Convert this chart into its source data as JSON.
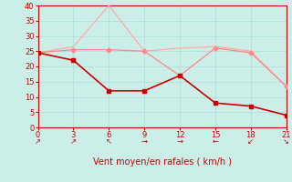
{
  "x_ticks": [
    0,
    3,
    6,
    9,
    12,
    15,
    18,
    21
  ],
  "xlabel": "Vent moyen/en rafales ( km/h )",
  "ylim": [
    0,
    40
  ],
  "xlim": [
    0,
    21
  ],
  "yticks": [
    0,
    5,
    10,
    15,
    20,
    25,
    30,
    35,
    40
  ],
  "background_color": "#cceee8",
  "grid_color": "#b0ddd8",
  "line1": {
    "x": [
      0,
      3,
      6,
      9,
      12,
      15,
      18,
      21
    ],
    "y": [
      24.5,
      26.5,
      40,
      25,
      26,
      26.5,
      25,
      13.5
    ],
    "color": "#ffaaaa",
    "linewidth": 0.9,
    "marker": null
  },
  "line2": {
    "x": [
      0,
      3,
      6,
      9,
      12,
      15,
      18,
      21
    ],
    "y": [
      24.5,
      25.5,
      25.5,
      25,
      17,
      26,
      24.5,
      13.5
    ],
    "color": "#ff8888",
    "linewidth": 0.9,
    "marker": "D",
    "markersize": 2.5
  },
  "line3": {
    "x": [
      0,
      3,
      6,
      9,
      12,
      15,
      18,
      21
    ],
    "y": [
      24.5,
      22,
      12,
      12,
      17,
      8,
      7,
      4
    ],
    "color": "#cc0000",
    "linewidth": 1.2,
    "marker": "s",
    "markersize": 2.5
  },
  "wind_arrows_x": [
    0,
    3,
    6,
    9,
    12,
    15,
    18,
    21
  ],
  "wind_arrows": [
    "↗",
    "↗",
    "↖",
    "→",
    "→",
    "←",
    "↙",
    "↘"
  ],
  "xlabel_fontsize": 7,
  "tick_fontsize": 6,
  "arrow_fontsize": 6
}
